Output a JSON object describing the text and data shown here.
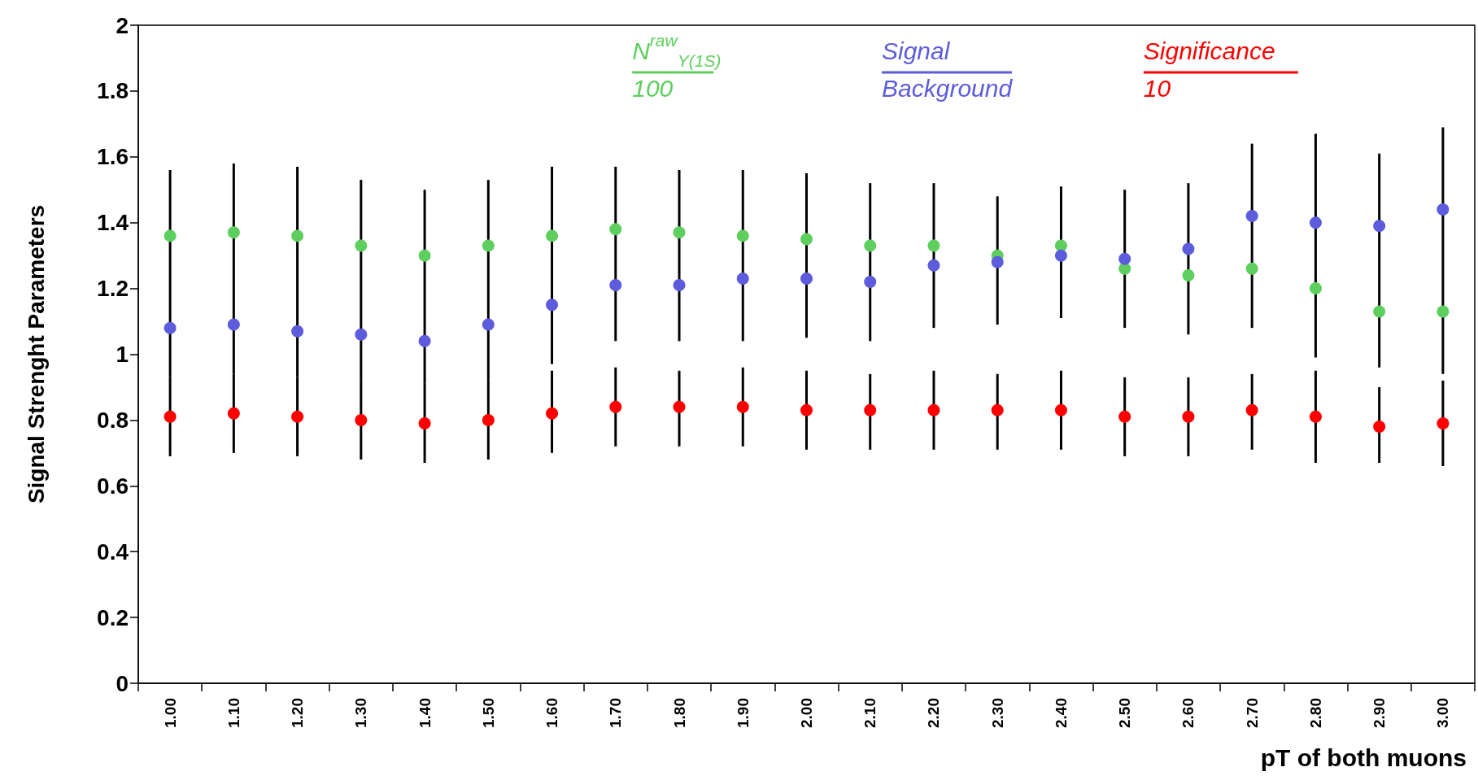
{
  "chart_data": {
    "type": "scatter",
    "ylabel": "Signal Strenght Parameters",
    "xlabel": "pT of both muons",
    "categories": [
      "1.00",
      "1.10",
      "1.20",
      "1.30",
      "1.40",
      "1.50",
      "1.60",
      "1.70",
      "1.80",
      "1.90",
      "2.00",
      "2.10",
      "2.20",
      "2.30",
      "2.40",
      "2.50",
      "2.60",
      "2.70",
      "2.80",
      "2.90",
      "3.00"
    ],
    "ylim": [
      0,
      2
    ],
    "yticks": [
      0,
      0.2,
      0.4,
      0.6,
      0.8,
      1,
      1.2,
      1.4,
      1.6,
      1.8,
      2
    ],
    "grid": false,
    "marker": "circle",
    "series": [
      {
        "name": "N$^{raw}$$_{Y(1S)}$\n100",
        "color": "#5ecf5e",
        "values": [
          1.36,
          1.37,
          1.36,
          1.33,
          1.3,
          1.33,
          1.36,
          1.38,
          1.37,
          1.36,
          1.35,
          1.33,
          1.33,
          1.3,
          1.33,
          1.26,
          1.24,
          1.26,
          1.2,
          1.13,
          1.13
        ]
      },
      {
        "name": "Signal\nBackground",
        "color": "#5c5cdc",
        "values": [
          1.08,
          1.09,
          1.07,
          1.06,
          1.04,
          1.09,
          1.15,
          1.21,
          1.21,
          1.23,
          1.23,
          1.22,
          1.27,
          1.28,
          1.3,
          1.29,
          1.32,
          1.42,
          1.4,
          1.39,
          1.44
        ],
        "errors": [
          [
            0.93,
            1.56
          ],
          [
            0.94,
            1.58
          ],
          [
            0.93,
            1.57
          ],
          [
            0.92,
            1.53
          ],
          [
            0.91,
            1.5
          ],
          [
            0.92,
            1.53
          ],
          [
            0.97,
            1.57
          ],
          [
            1.04,
            1.57
          ],
          [
            1.04,
            1.56
          ],
          [
            1.04,
            1.56
          ],
          [
            1.05,
            1.55
          ],
          [
            1.04,
            1.52
          ],
          [
            1.08,
            1.52
          ],
          [
            1.09,
            1.48
          ],
          [
            1.11,
            1.51
          ],
          [
            1.08,
            1.5
          ],
          [
            1.06,
            1.52
          ],
          [
            1.08,
            1.64
          ],
          [
            0.99,
            1.67
          ],
          [
            0.96,
            1.61
          ],
          [
            0.94,
            1.69
          ]
        ]
      },
      {
        "name": "Significance\n10",
        "color": "#ff0000",
        "values": [
          0.81,
          0.82,
          0.81,
          0.8,
          0.79,
          0.8,
          0.82,
          0.84,
          0.84,
          0.84,
          0.83,
          0.83,
          0.83,
          0.83,
          0.83,
          0.81,
          0.81,
          0.83,
          0.81,
          0.78,
          0.79
        ],
        "errors": [
          [
            0.69,
            0.93
          ],
          [
            0.7,
            0.94
          ],
          [
            0.69,
            0.93
          ],
          [
            0.68,
            0.92
          ],
          [
            0.67,
            0.91
          ],
          [
            0.68,
            0.92
          ],
          [
            0.7,
            0.95
          ],
          [
            0.72,
            0.96
          ],
          [
            0.72,
            0.95
          ],
          [
            0.72,
            0.96
          ],
          [
            0.71,
            0.95
          ],
          [
            0.71,
            0.94
          ],
          [
            0.71,
            0.95
          ],
          [
            0.71,
            0.94
          ],
          [
            0.71,
            0.95
          ],
          [
            0.69,
            0.93
          ],
          [
            0.69,
            0.93
          ],
          [
            0.71,
            0.94
          ],
          [
            0.67,
            0.95
          ],
          [
            0.67,
            0.9
          ],
          [
            0.66,
            0.92
          ]
        ]
      }
    ]
  }
}
